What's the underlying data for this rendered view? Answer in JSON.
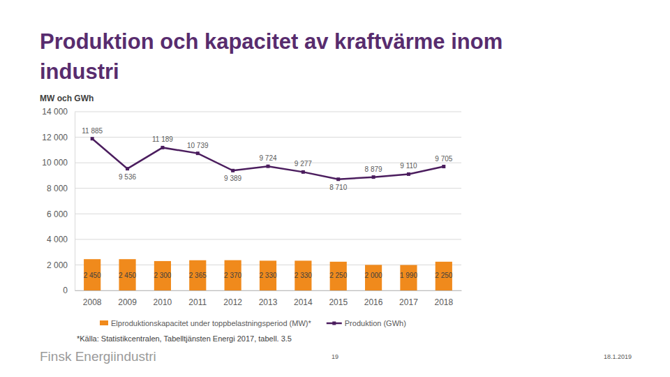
{
  "chart_data": {
    "type": "bar",
    "title": "Produktion och kapacitet av kraftvärme inom industri",
    "y_label": "MW och GWh",
    "categories": [
      "2008",
      "2009",
      "2010",
      "2011",
      "2012",
      "2013",
      "2014",
      "2015",
      "2016",
      "2017",
      "2018"
    ],
    "series": [
      {
        "name": "Elproduktionskapacitet under toppbelastningsperiod (MW)*",
        "type": "bar",
        "color": "#f08a1c",
        "values": [
          2450,
          2450,
          2300,
          2365,
          2370,
          2330,
          2330,
          2250,
          2000,
          1990,
          2250
        ],
        "value_labels": [
          "2 450",
          "2 450",
          "2 300",
          "2 365",
          "2 370",
          "2 330",
          "2 330",
          "2 250",
          "2 000",
          "1 990",
          "2 250"
        ]
      },
      {
        "name": "Produktion (GWh)",
        "type": "line",
        "color": "#4b1d5e",
        "marker": "square",
        "values": [
          11885,
          9536,
          11189,
          10739,
          9389,
          9724,
          9277,
          8710,
          8879,
          9110,
          9705
        ],
        "value_labels": [
          "11 885",
          "9 536",
          "11 189",
          "10 739",
          "9 389",
          "9 724",
          "9 277",
          "8 710",
          "8 879",
          "9 110",
          "9 705"
        ]
      }
    ],
    "ylim": [
      0,
      14000
    ],
    "yticks": [
      0,
      {
        "value": 2000,
        "label": "2 000"
      },
      {
        "value": 4000,
        "label": "4 000"
      },
      {
        "value": 6000,
        "label": "6 000"
      },
      {
        "value": 8000,
        "label": "8 000"
      },
      {
        "value": 10000,
        "label": "10 000"
      },
      {
        "value": 12000,
        "label": "12 000"
      },
      {
        "value": 14000,
        "label": "14 000"
      }
    ],
    "grid": true,
    "legend": "bottom",
    "data_labels": true
  },
  "footer": {
    "source": "*Källa: Statistikcentralen, Tabelltjänsten Energi 2017, tabell. 3.5",
    "brand": "Finsk Energiindustri",
    "page": "19",
    "date": "18.1.2019"
  }
}
